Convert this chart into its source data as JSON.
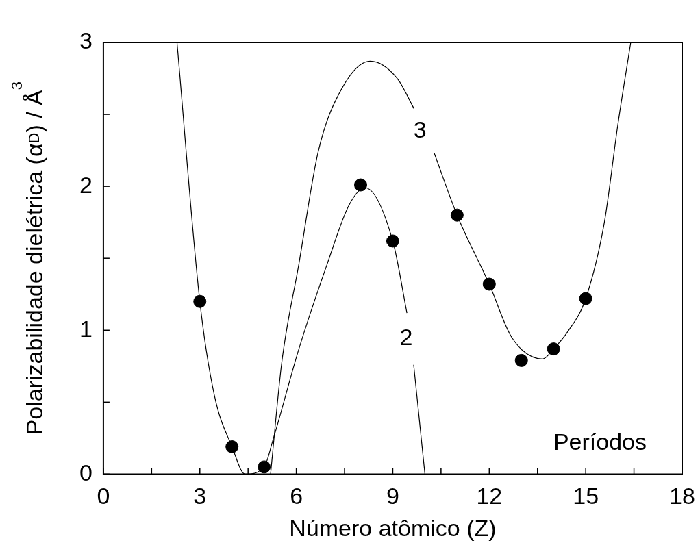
{
  "chart_data": {
    "type": "scatter",
    "xlabel": "Número atômico (Z)",
    "ylabel": "Polarizabilidade dielétrica (α$_{D}$) / Å$^{3}$",
    "xlim": [
      0,
      18
    ],
    "xticks": [
      0,
      {
        "value": 1.5,
        "label": null
      },
      3,
      {
        "value": 4.5,
        "label": null
      },
      6,
      {
        "value": 7.5,
        "label": null
      },
      9,
      {
        "value": 10.5,
        "label": null
      },
      12,
      {
        "value": 13.5,
        "label": null
      },
      15,
      {
        "value": 16.5,
        "label": null
      },
      18
    ],
    "ylim": [
      0,
      3
    ],
    "yticks": [
      0,
      {
        "value": 0.5,
        "label": null
      },
      1,
      {
        "value": 1.5,
        "label": null
      },
      2,
      {
        "value": 2.5,
        "label": null
      },
      3
    ],
    "grid": false,
    "legend": false,
    "marker": "circle",
    "series": [
      {
        "color": "#000000",
        "x": [
          3,
          4,
          5,
          8,
          9,
          11,
          12,
          13,
          14,
          15
        ],
        "values": [
          1.2,
          0.19,
          0.05,
          2.01,
          1.62,
          1.8,
          1.32,
          0.79,
          0.87,
          1.22
        ]
      },
      {
        "type": "line",
        "name": "2",
        "color": "#000000",
        "marker": "none",
        "x": [
          2.29,
          3,
          3.45,
          4,
          4.41,
          5,
          5.29,
          6.08,
          6.96,
          7.64,
          8.14,
          9,
          9.44,
          9.55,
          9.65,
          10.0
        ],
        "values": [
          3,
          1.2,
          0.55,
          0.19,
          0,
          0.05,
          0.25,
          0.87,
          1.46,
          1.87,
          1.99,
          1.62,
          1.12,
          null,
          0.76,
          0
        ]
      },
      {
        "type": "line",
        "name": "3",
        "color": "#000000",
        "marker": "none",
        "x": [
          5.2,
          5.55,
          6.08,
          6.68,
          7.39,
          8.3,
          9.14,
          9.66,
          10.0,
          10.29,
          11,
          12,
          12.7,
          13.66,
          14,
          14.44,
          15,
          15.58,
          16.0,
          16.4
        ],
        "values": [
          0,
          0.78,
          1.46,
          2.24,
          2.67,
          2.87,
          2.75,
          2.54,
          null,
          2.23,
          1.8,
          1.32,
          0.95,
          0.8,
          0.87,
          0.99,
          1.22,
          1.75,
          2.43,
          3
        ]
      }
    ],
    "annotations": [
      "Períodos"
    ]
  }
}
